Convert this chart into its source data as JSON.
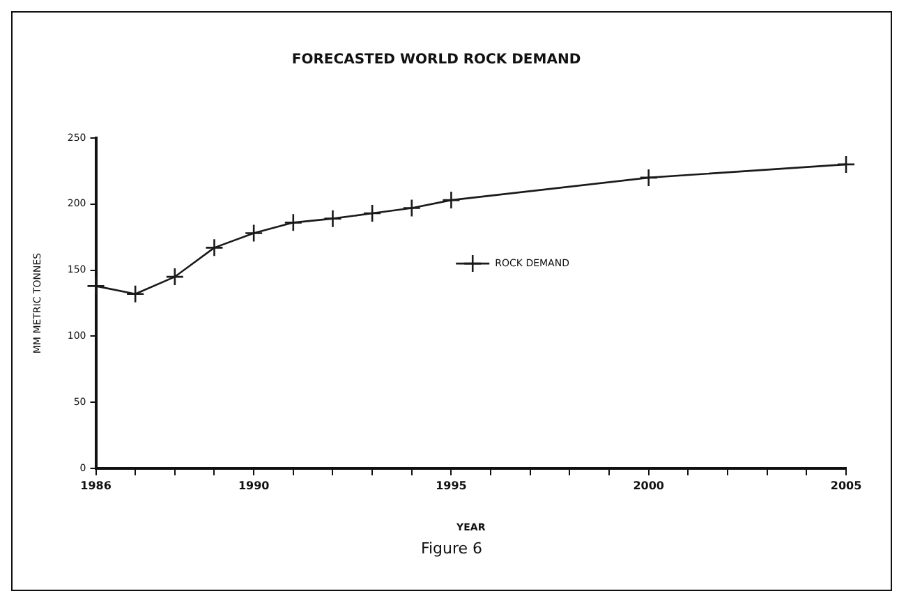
{
  "chart_data": {
    "type": "line",
    "title": "FORECASTED WORLD ROCK DEMAND",
    "xlabel": "YEAR",
    "ylabel": "MM METRIC TONNES",
    "x": [
      1986,
      1987,
      1988,
      1989,
      1990,
      1991,
      1992,
      1993,
      1994,
      1995,
      2000,
      2005
    ],
    "series": [
      {
        "name": "ROCK DEMAND",
        "color": "#1a1a1a",
        "values": [
          138,
          132,
          145,
          167,
          178,
          186,
          189,
          193,
          197,
          203,
          220,
          230
        ]
      }
    ],
    "xlim": [
      1986,
      2005
    ],
    "xticks": [
      1986,
      {
        "value": 1987,
        "label": null
      },
      {
        "value": 1988,
        "label": null
      },
      {
        "value": 1989,
        "label": null
      },
      1990,
      {
        "value": 1991,
        "label": null
      },
      {
        "value": 1992,
        "label": null
      },
      {
        "value": 1993,
        "label": null
      },
      {
        "value": 1994,
        "label": null
      },
      1995,
      {
        "value": 1996,
        "label": null
      },
      {
        "value": 1997,
        "label": null
      },
      {
        "value": 1998,
        "label": null
      },
      {
        "value": 1999,
        "label": null
      },
      2000,
      {
        "value": 2001,
        "label": null
      },
      {
        "value": 2002,
        "label": null
      },
      {
        "value": 2003,
        "label": null
      },
      {
        "value": 2004,
        "label": null
      },
      2005
    ],
    "ylim": [
      0,
      250
    ],
    "yticks": [
      0,
      50,
      100,
      150,
      200,
      250
    ],
    "grid": false,
    "legend": "right",
    "marker": "cross",
    "line_style": "solid",
    "annotations": [
      "Figure 6"
    ]
  }
}
